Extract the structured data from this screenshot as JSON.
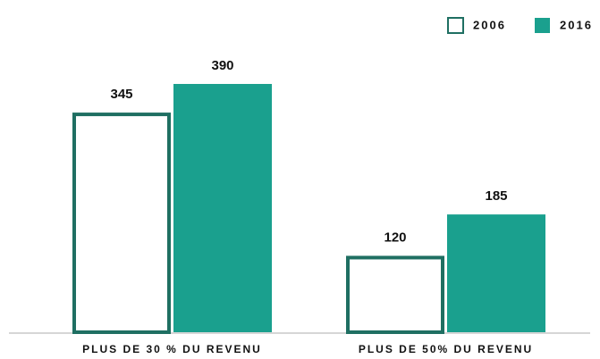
{
  "chart_data": {
    "type": "bar",
    "categories": [
      "PLUS DE 30 % DU REVENU",
      "PLUS DE 50% DU REVENU"
    ],
    "series": [
      {
        "name": "2006",
        "color": "#1f6f62",
        "fill": "#ffffff",
        "values": [
          345,
          120
        ]
      },
      {
        "name": "2016",
        "color": "#1aa08e",
        "fill": "#1aa08e",
        "values": [
          390,
          185
        ]
      }
    ],
    "legend": "top-right"
  }
}
